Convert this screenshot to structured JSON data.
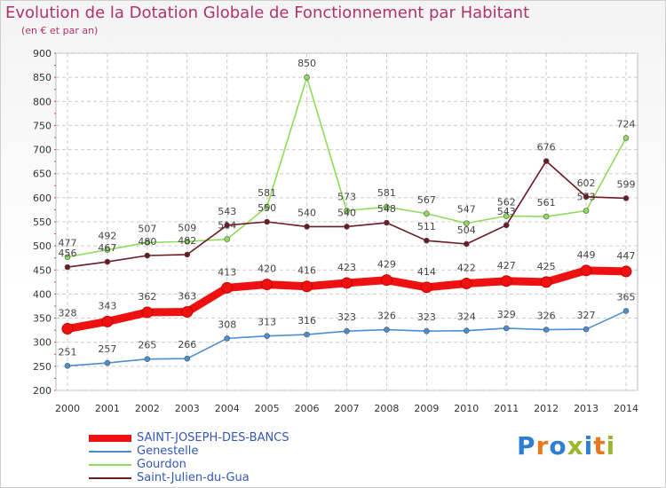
{
  "header": {
    "title": "Evolution de la Dotation Globale de Fonctionnement par Habitant",
    "subtitle": "(en € et par an)"
  },
  "logo": {
    "text": "Proxiti",
    "letter_colors": [
      "#2e7fd1",
      "#e8771e",
      "#2e7fd1",
      "#9ab82e",
      "#2e7fd1",
      "#e8771e",
      "#9ab82e"
    ]
  },
  "colors": {
    "saint_joseph": "#ee1111",
    "genestelle": "#4a8ed0",
    "gourdon": "#8edc5a",
    "saint_julien": "#6b1a22",
    "axis_text": "#333333",
    "grid": "#cccccc",
    "legend_text": "#3458b8"
  },
  "chart_data": {
    "type": "line",
    "title": "Evolution de la Dotation Globale de Fonctionnement par Habitant",
    "subtitle": "(en € et par an)",
    "x": [
      "2000",
      "2001",
      "2002",
      "2003",
      "2004",
      "2005",
      "2006",
      "2007",
      "2008",
      "2009",
      "2010",
      "2011",
      "2012",
      "2013",
      "2014"
    ],
    "y_ticks": [
      200,
      250,
      300,
      350,
      400,
      450,
      500,
      550,
      600,
      650,
      700,
      750,
      800,
      850,
      900
    ],
    "ylim": [
      200,
      900
    ],
    "grid": true,
    "legend_position": "bottom-left",
    "series": [
      {
        "name": "SAINT-JOSEPH-DES-BANCS",
        "values": [
          328,
          343,
          362,
          363,
          413,
          420,
          416,
          423,
          429,
          414,
          422,
          427,
          425,
          449,
          447
        ]
      },
      {
        "name": "Genestelle",
        "values": [
          251,
          257,
          265,
          266,
          308,
          313,
          316,
          323,
          326,
          323,
          324,
          329,
          326,
          327,
          365
        ]
      },
      {
        "name": "Gourdon",
        "values": [
          477,
          492,
          507,
          509,
          514,
          581,
          850,
          573,
          581,
          567,
          547,
          562,
          561,
          573,
          724
        ]
      },
      {
        "name": "Saint-Julien-du-Gua",
        "values": [
          456,
          467,
          480,
          482,
          543,
          550,
          540,
          540,
          548,
          511,
          504,
          543,
          676,
          602,
          599
        ]
      }
    ]
  }
}
